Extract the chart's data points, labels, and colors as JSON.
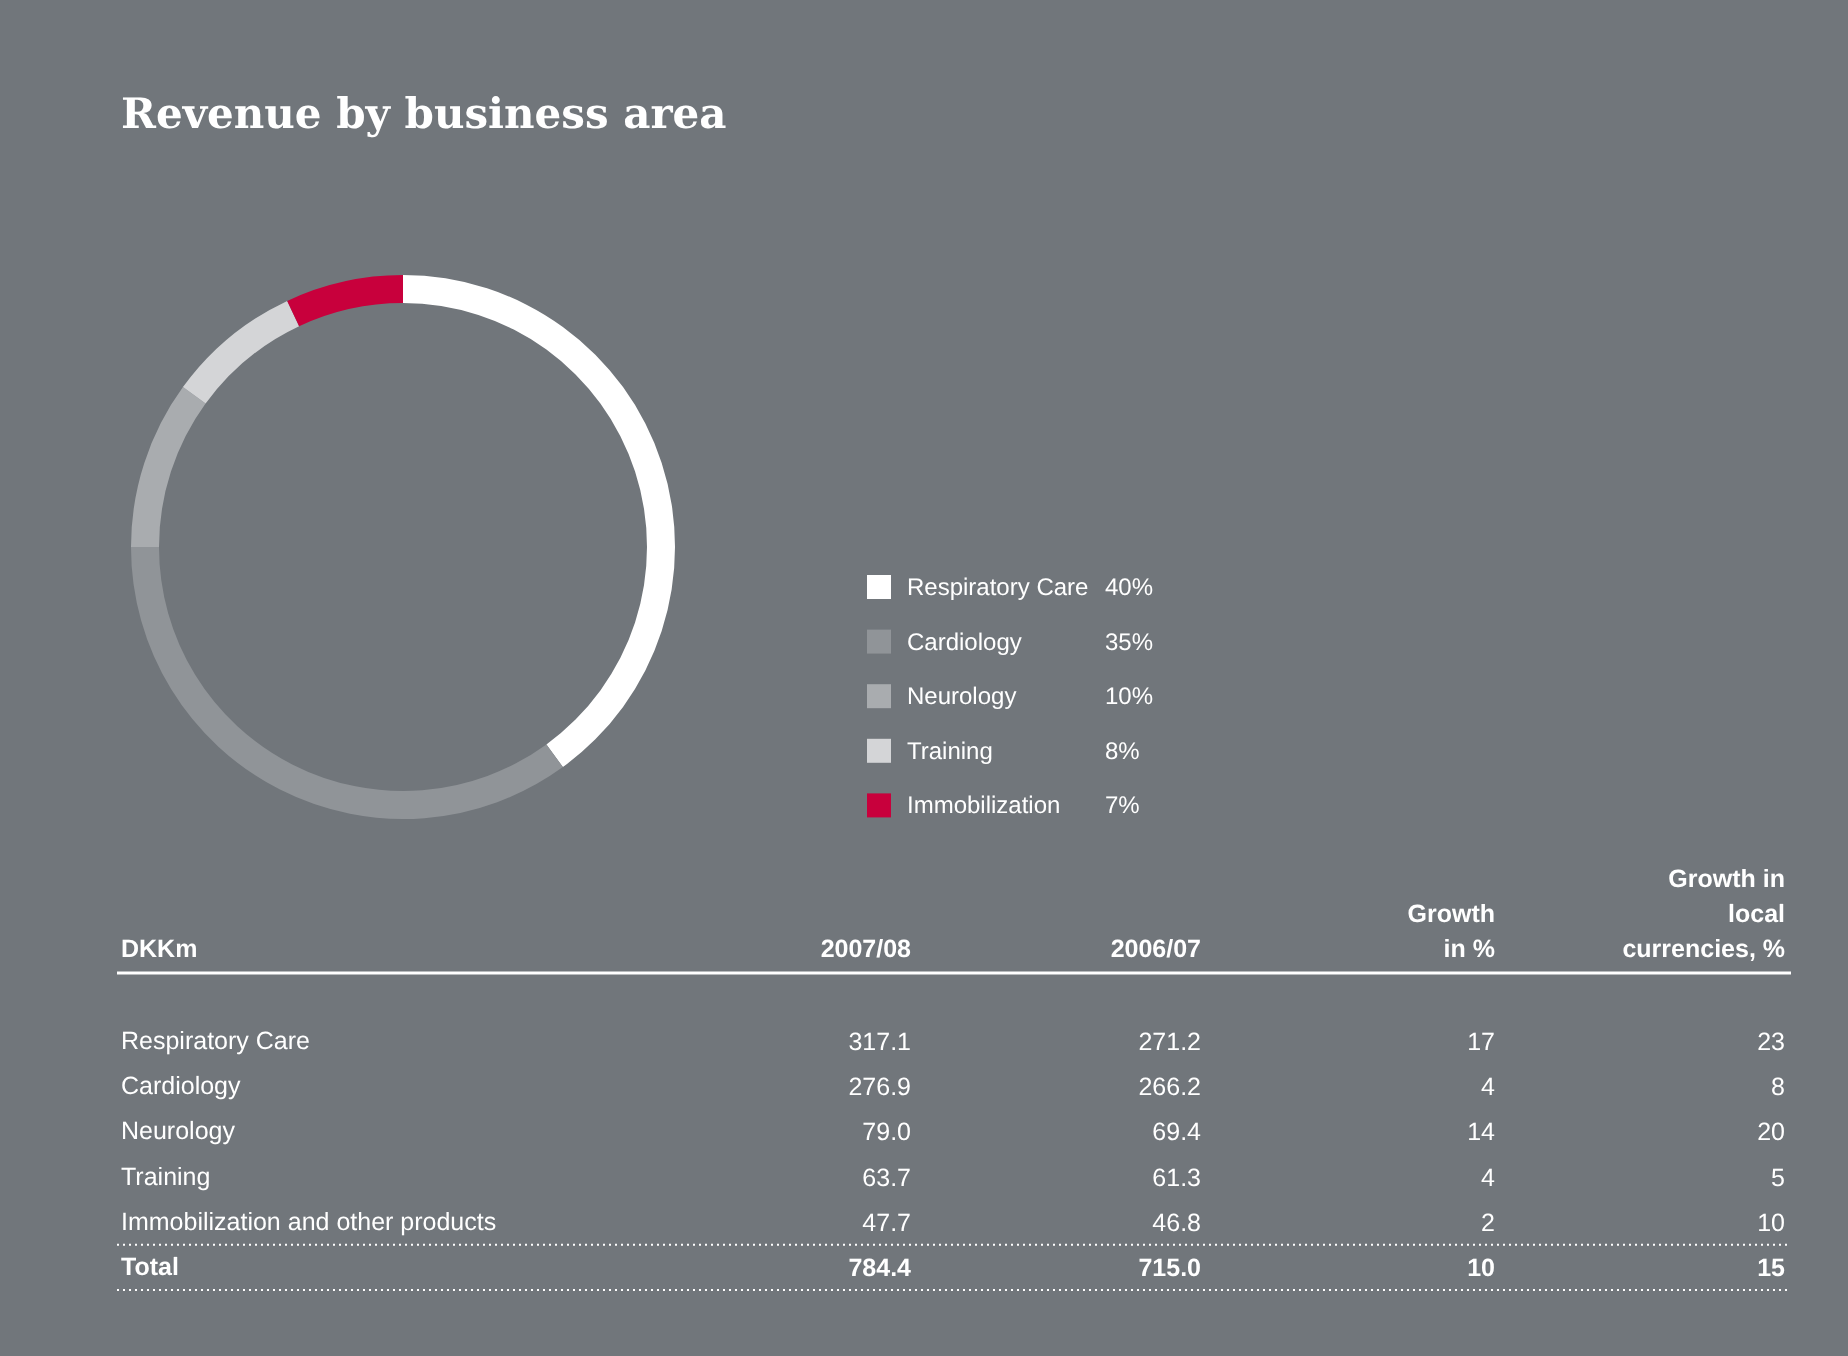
{
  "chart_data": [
    {
      "type": "donut",
      "title": "Revenue by business area",
      "categories": [
        "Respiratory Care",
        "Cardiology",
        "Neurology",
        "Training",
        "Immobilization"
      ],
      "values": [
        40,
        35,
        10,
        8,
        7
      ],
      "value_labels": [
        "40%",
        "35%",
        "10%",
        "8%",
        "7%"
      ],
      "colors": [
        "#ffffff",
        "#909498",
        "#a9acaf",
        "#d4d5d7",
        "#c8003c"
      ],
      "legend": "right"
    },
    {
      "type": "heatmap",
      "ylabel": "DKKm",
      "categories": [
        "2007/08",
        "2006/07",
        "Growth\nin %",
        "Growth in\nlocal\ncurrencies, %"
      ],
      "y_categories": [
        "Respiratory Care",
        "Cardiology",
        "Neurology",
        "Training",
        "Immobilization and other products",
        "Total"
      ],
      "cells": [
        [
          317.1,
          271.2,
          17,
          23
        ],
        [
          276.9,
          266.2,
          4,
          8
        ],
        [
          79.0,
          69.4,
          14,
          20
        ],
        [
          63.7,
          61.3,
          4,
          5
        ],
        [
          47.7,
          46.8,
          2,
          10
        ],
        [
          784.4,
          715.0,
          10,
          15
        ]
      ],
      "cell_labels": [
        [
          "317.1",
          "271.2",
          "17",
          "23"
        ],
        [
          "276.9",
          "266.2",
          "4",
          "8"
        ],
        [
          "79.0",
          "69.4",
          "14",
          "20"
        ],
        [
          "63.7",
          "61.3",
          "4",
          "5"
        ],
        [
          "47.7",
          "46.8",
          "2",
          "10"
        ],
        [
          "784.4",
          "715.0",
          "10",
          "15"
        ]
      ]
    }
  ]
}
